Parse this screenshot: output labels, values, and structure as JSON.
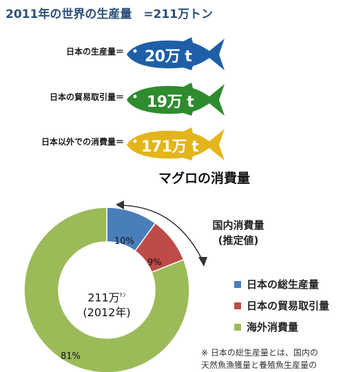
{
  "heading": "2011年の世界の生産量　=211万トン",
  "fish": [
    {
      "label": "日本の生産量＝",
      "value": "20万 t",
      "color": "#1d5fa8"
    },
    {
      "label": "日本の貿易取引量＝",
      "value": "19万 t",
      "color": "#2e8b2e"
    },
    {
      "label": "日本以外での消費量＝",
      "value": "171万 t",
      "color": "#e3b51a"
    }
  ],
  "consumption_title": "マグロの消費量",
  "donut": {
    "center_line1": "211万",
    "center_unit": "ﾄﾝ",
    "center_line2": "(2012年)",
    "slices": [
      {
        "name": "日本の総生産量",
        "pct": 10,
        "label": "10%",
        "color": "#4a7ebb"
      },
      {
        "name": "日本の貿易取引量",
        "pct": 9,
        "label": "9%",
        "color": "#be4b48"
      },
      {
        "name": "海外消費量",
        "pct": 81,
        "label": "81%",
        "color": "#9bbb59"
      }
    ]
  },
  "domestic": {
    "line1": "国内消費量",
    "line2": "(推定値)"
  },
  "note": {
    "line1": "※ 日本の総生産量とは、国内の",
    "line2": "天然魚漁獲量と養殖魚生産量の"
  }
}
